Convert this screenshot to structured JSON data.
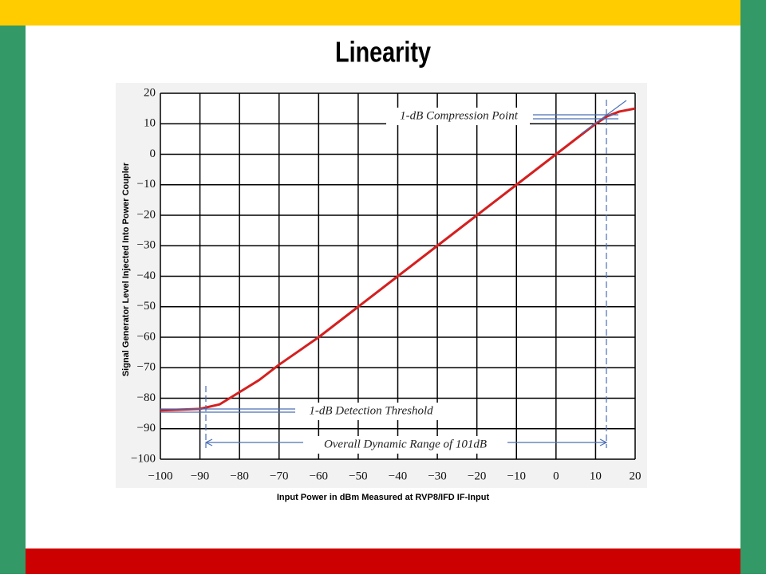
{
  "chart_data": {
    "type": "line",
    "title": "Linearity",
    "x_label": "Input Power in dBm Measured at RVP8/IFD IF-Input",
    "y_label": "Signal Generator Level Injected Into Power Coupler",
    "x": [
      -100,
      -90,
      -85,
      -80,
      -75,
      -70,
      -60,
      -50,
      -40,
      -30,
      -20,
      -10,
      0,
      10,
      13,
      16,
      20
    ],
    "series": [
      {
        "color": "#d42020",
        "values": [
          -84,
          -83.5,
          -82,
          -78,
          -74,
          -69,
          -60,
          -50,
          -40,
          -30,
          -20,
          -10,
          0,
          10,
          12.5,
          14,
          15
        ]
      }
    ],
    "xlim": [
      -100,
      20
    ],
    "ylim": [
      -100,
      20
    ],
    "xticks": [
      {
        "value": -100,
        "label": "−100"
      },
      {
        "value": -90,
        "label": "−90"
      },
      {
        "value": -80,
        "label": "−80"
      },
      {
        "value": -70,
        "label": "−70"
      },
      {
        "value": -60,
        "label": "−60"
      },
      {
        "value": -50,
        "label": "−50"
      },
      {
        "value": -40,
        "label": "−40"
      },
      {
        "value": -30,
        "label": "−30"
      },
      {
        "value": -20,
        "label": "−20"
      },
      {
        "value": -10,
        "label": "−10"
      },
      0,
      10,
      20
    ],
    "yticks": [
      {
        "value": -100,
        "label": "−100"
      },
      {
        "value": -90,
        "label": "−90"
      },
      {
        "value": -80,
        "label": "−80"
      },
      {
        "value": -70,
        "label": "−70"
      },
      {
        "value": -60,
        "label": "−60"
      },
      {
        "value": -50,
        "label": "−50"
      },
      {
        "value": -40,
        "label": "−40"
      },
      {
        "value": -30,
        "label": "−30"
      },
      {
        "value": -20,
        "label": "−20"
      },
      {
        "value": -10,
        "label": "−10"
      },
      0,
      10,
      20
    ],
    "grid": true,
    "annotations": [
      "1-dB Compression Point",
      "1-dB Detection Threshold",
      "Overall Dynamic Range of 101dB"
    ]
  }
}
